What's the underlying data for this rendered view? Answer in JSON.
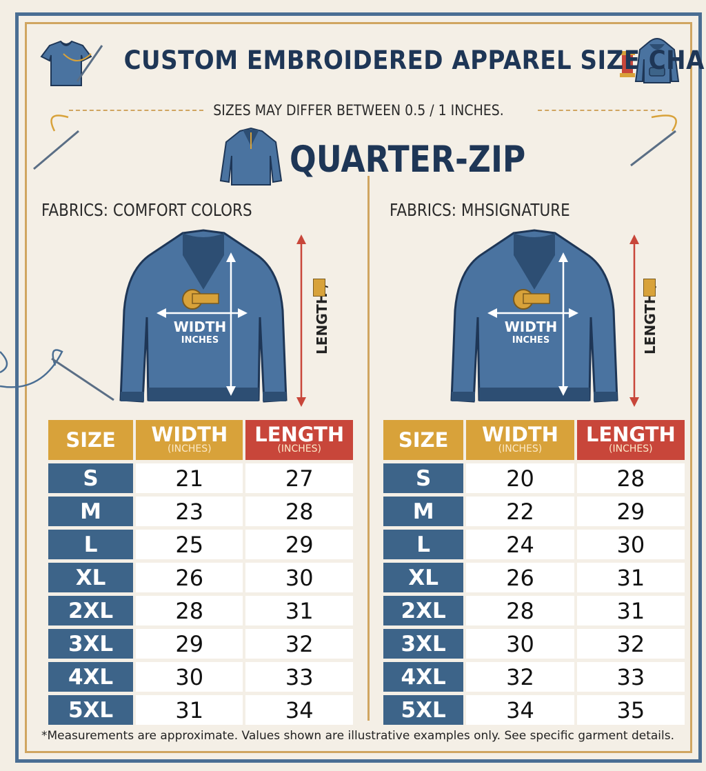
{
  "header": {
    "title": "CUSTOM EMBROIDERED APPAREL SIZE CHART"
  },
  "note": "SIZES MAY DIFFER BETWEEN 0.5 / 1 INCHES.",
  "product": "QUARTER-ZIP",
  "colors": {
    "navy": "#1e3656",
    "garment": "#4a73a0",
    "gold": "#d8a23a",
    "red": "#c8463a",
    "size_blue": "#3d6489"
  },
  "columns": {
    "size": "SIZE",
    "width": "WIDTH",
    "length": "LENGTH",
    "unit": "(INCHES)"
  },
  "diagram": {
    "width_label": "WIDTH",
    "width_unit": "INCHES",
    "length_label": "LENGTH /"
  },
  "panels": [
    {
      "fabric": "FABRICS: COMFORT COLORS",
      "rows": [
        {
          "size": "S",
          "width": "21",
          "length": "27"
        },
        {
          "size": "M",
          "width": "23",
          "length": "28"
        },
        {
          "size": "L",
          "width": "25",
          "length": "29"
        },
        {
          "size": "XL",
          "width": "26",
          "length": "30"
        },
        {
          "size": "2XL",
          "width": "28",
          "length": "31"
        },
        {
          "size": "3XL",
          "width": "29",
          "length": "32"
        },
        {
          "size": "4XL",
          "width": "30",
          "length": "33"
        },
        {
          "size": "5XL",
          "width": "31",
          "length": "34"
        }
      ]
    },
    {
      "fabric": "FABRICS: MHSIGNATURE",
      "rows": [
        {
          "size": "S",
          "width": "20",
          "length": "28"
        },
        {
          "size": "M",
          "width": "22",
          "length": "29"
        },
        {
          "size": "L",
          "width": "24",
          "length": "30"
        },
        {
          "size": "XL",
          "width": "26",
          "length": "31"
        },
        {
          "size": "2XL",
          "width": "28",
          "length": "31"
        },
        {
          "size": "3XL",
          "width": "30",
          "length": "32"
        },
        {
          "size": "4XL",
          "width": "32",
          "length": "33"
        },
        {
          "size": "5XL",
          "width": "34",
          "length": "35"
        }
      ]
    }
  ],
  "footnote": "*Measurements are approximate. Values shown are illustrative examples only. See specific garment details."
}
